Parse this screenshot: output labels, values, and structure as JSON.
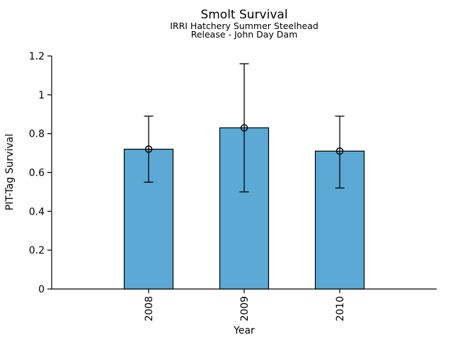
{
  "chart_data": {
    "type": "bar",
    "title": "Smolt Survival",
    "subtitle_lines": [
      "IRRI Hatchery Summer Steelhead",
      "Release - John Day Dam"
    ],
    "xlabel": "Year",
    "ylabel": "PIT-Tag Survival",
    "categories": [
      "2008",
      "2009",
      "2010"
    ],
    "values": [
      0.72,
      0.83,
      0.71
    ],
    "error_low": [
      0.55,
      0.5,
      0.52
    ],
    "error_high": [
      0.89,
      1.16,
      0.89
    ],
    "marker": "open-circle",
    "ylim": [
      0,
      1.2
    ],
    "yticks": [
      0,
      0.2,
      0.4,
      0.6,
      0.8,
      1,
      1.2
    ],
    "ytick_labels": [
      "0",
      "0.2",
      "0.4",
      "0.6",
      "0.8",
      "1",
      "1.2"
    ],
    "xtick_rotation_degrees": 90,
    "bar_color": "#5BA9D4",
    "bar_edge_color": "#000000",
    "grid": false,
    "legend": "none",
    "background_color": "#ffffff"
  }
}
